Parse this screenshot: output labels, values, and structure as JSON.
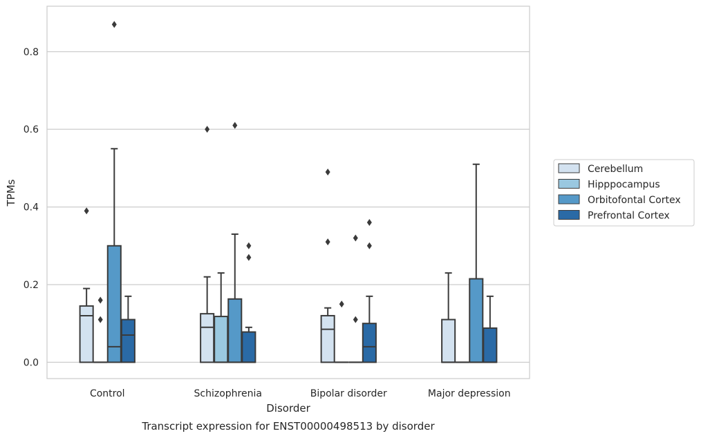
{
  "chart_data": {
    "type": "box",
    "caption": "Transcript expression for ENST00000498513 by disorder",
    "xlabel": "Disorder",
    "ylabel": "TPMs",
    "ylim": [
      -0.042,
      0.917
    ],
    "yticks": [
      0.0,
      0.2,
      0.4,
      0.6,
      0.8
    ],
    "ytick_labels": [
      "0.0",
      "0.2",
      "0.4",
      "0.6",
      "0.8"
    ],
    "grid": "horizontal",
    "legend_position": "right",
    "categories": [
      "Control",
      "Schizophrenia",
      "Bipolar disorder",
      "Major depression"
    ],
    "series": [
      {
        "name": "Cerebellum",
        "color": "#d3e2f0",
        "boxes": [
          {
            "q1": 0.0,
            "median": 0.12,
            "q3": 0.145,
            "whisker_low": 0.0,
            "whisker_high": 0.19,
            "outliers": [
              0.39
            ]
          },
          {
            "q1": 0.0,
            "median": 0.09,
            "q3": 0.125,
            "whisker_low": 0.0,
            "whisker_high": 0.22,
            "outliers": [
              0.6
            ]
          },
          {
            "q1": 0.0,
            "median": 0.085,
            "q3": 0.12,
            "whisker_low": 0.0,
            "whisker_high": 0.14,
            "outliers": [
              0.31,
              0.49
            ]
          },
          {
            "q1": 0.0,
            "median": 0.0,
            "q3": 0.11,
            "whisker_low": 0.0,
            "whisker_high": 0.23,
            "outliers": []
          }
        ]
      },
      {
        "name": "Hipppocampus",
        "color": "#9ac8e0",
        "boxes": [
          {
            "q1": 0.0,
            "median": 0.0,
            "q3": 0.0,
            "whisker_low": 0.0,
            "whisker_high": 0.0,
            "outliers": [
              0.11,
              0.16
            ]
          },
          {
            "q1": 0.0,
            "median": 0.0,
            "q3": 0.118,
            "whisker_low": 0.0,
            "whisker_high": 0.23,
            "outliers": []
          },
          {
            "q1": 0.0,
            "median": 0.0,
            "q3": 0.0,
            "whisker_low": 0.0,
            "whisker_high": 0.0,
            "outliers": [
              0.15
            ]
          },
          {
            "q1": 0.0,
            "median": 0.0,
            "q3": 0.0,
            "whisker_low": 0.0,
            "whisker_high": 0.0,
            "outliers": []
          }
        ]
      },
      {
        "name": "Orbitofontal Cortex",
        "color": "#5599c8",
        "boxes": [
          {
            "q1": 0.0,
            "median": 0.04,
            "q3": 0.3,
            "whisker_low": 0.0,
            "whisker_high": 0.55,
            "outliers": [
              0.87
            ]
          },
          {
            "q1": 0.0,
            "median": 0.0,
            "q3": 0.163,
            "whisker_low": 0.0,
            "whisker_high": 0.33,
            "outliers": [
              0.61
            ]
          },
          {
            "q1": 0.0,
            "median": 0.0,
            "q3": 0.0,
            "whisker_low": 0.0,
            "whisker_high": 0.0,
            "outliers": [
              0.11,
              0.32
            ]
          },
          {
            "q1": 0.0,
            "median": 0.0,
            "q3": 0.215,
            "whisker_low": 0.0,
            "whisker_high": 0.51,
            "outliers": []
          }
        ]
      },
      {
        "name": "Prefrontal Cortex",
        "color": "#2a6aa6",
        "boxes": [
          {
            "q1": 0.0,
            "median": 0.07,
            "q3": 0.11,
            "whisker_low": 0.0,
            "whisker_high": 0.17,
            "outliers": []
          },
          {
            "q1": 0.0,
            "median": 0.0,
            "q3": 0.078,
            "whisker_low": 0.0,
            "whisker_high": 0.09,
            "outliers": [
              0.27,
              0.3
            ]
          },
          {
            "q1": 0.0,
            "median": 0.04,
            "q3": 0.1,
            "whisker_low": 0.0,
            "whisker_high": 0.17,
            "outliers": [
              0.3,
              0.36
            ]
          },
          {
            "q1": 0.0,
            "median": 0.0,
            "q3": 0.088,
            "whisker_low": 0.0,
            "whisker_high": 0.17,
            "outliers": []
          }
        ]
      }
    ]
  }
}
